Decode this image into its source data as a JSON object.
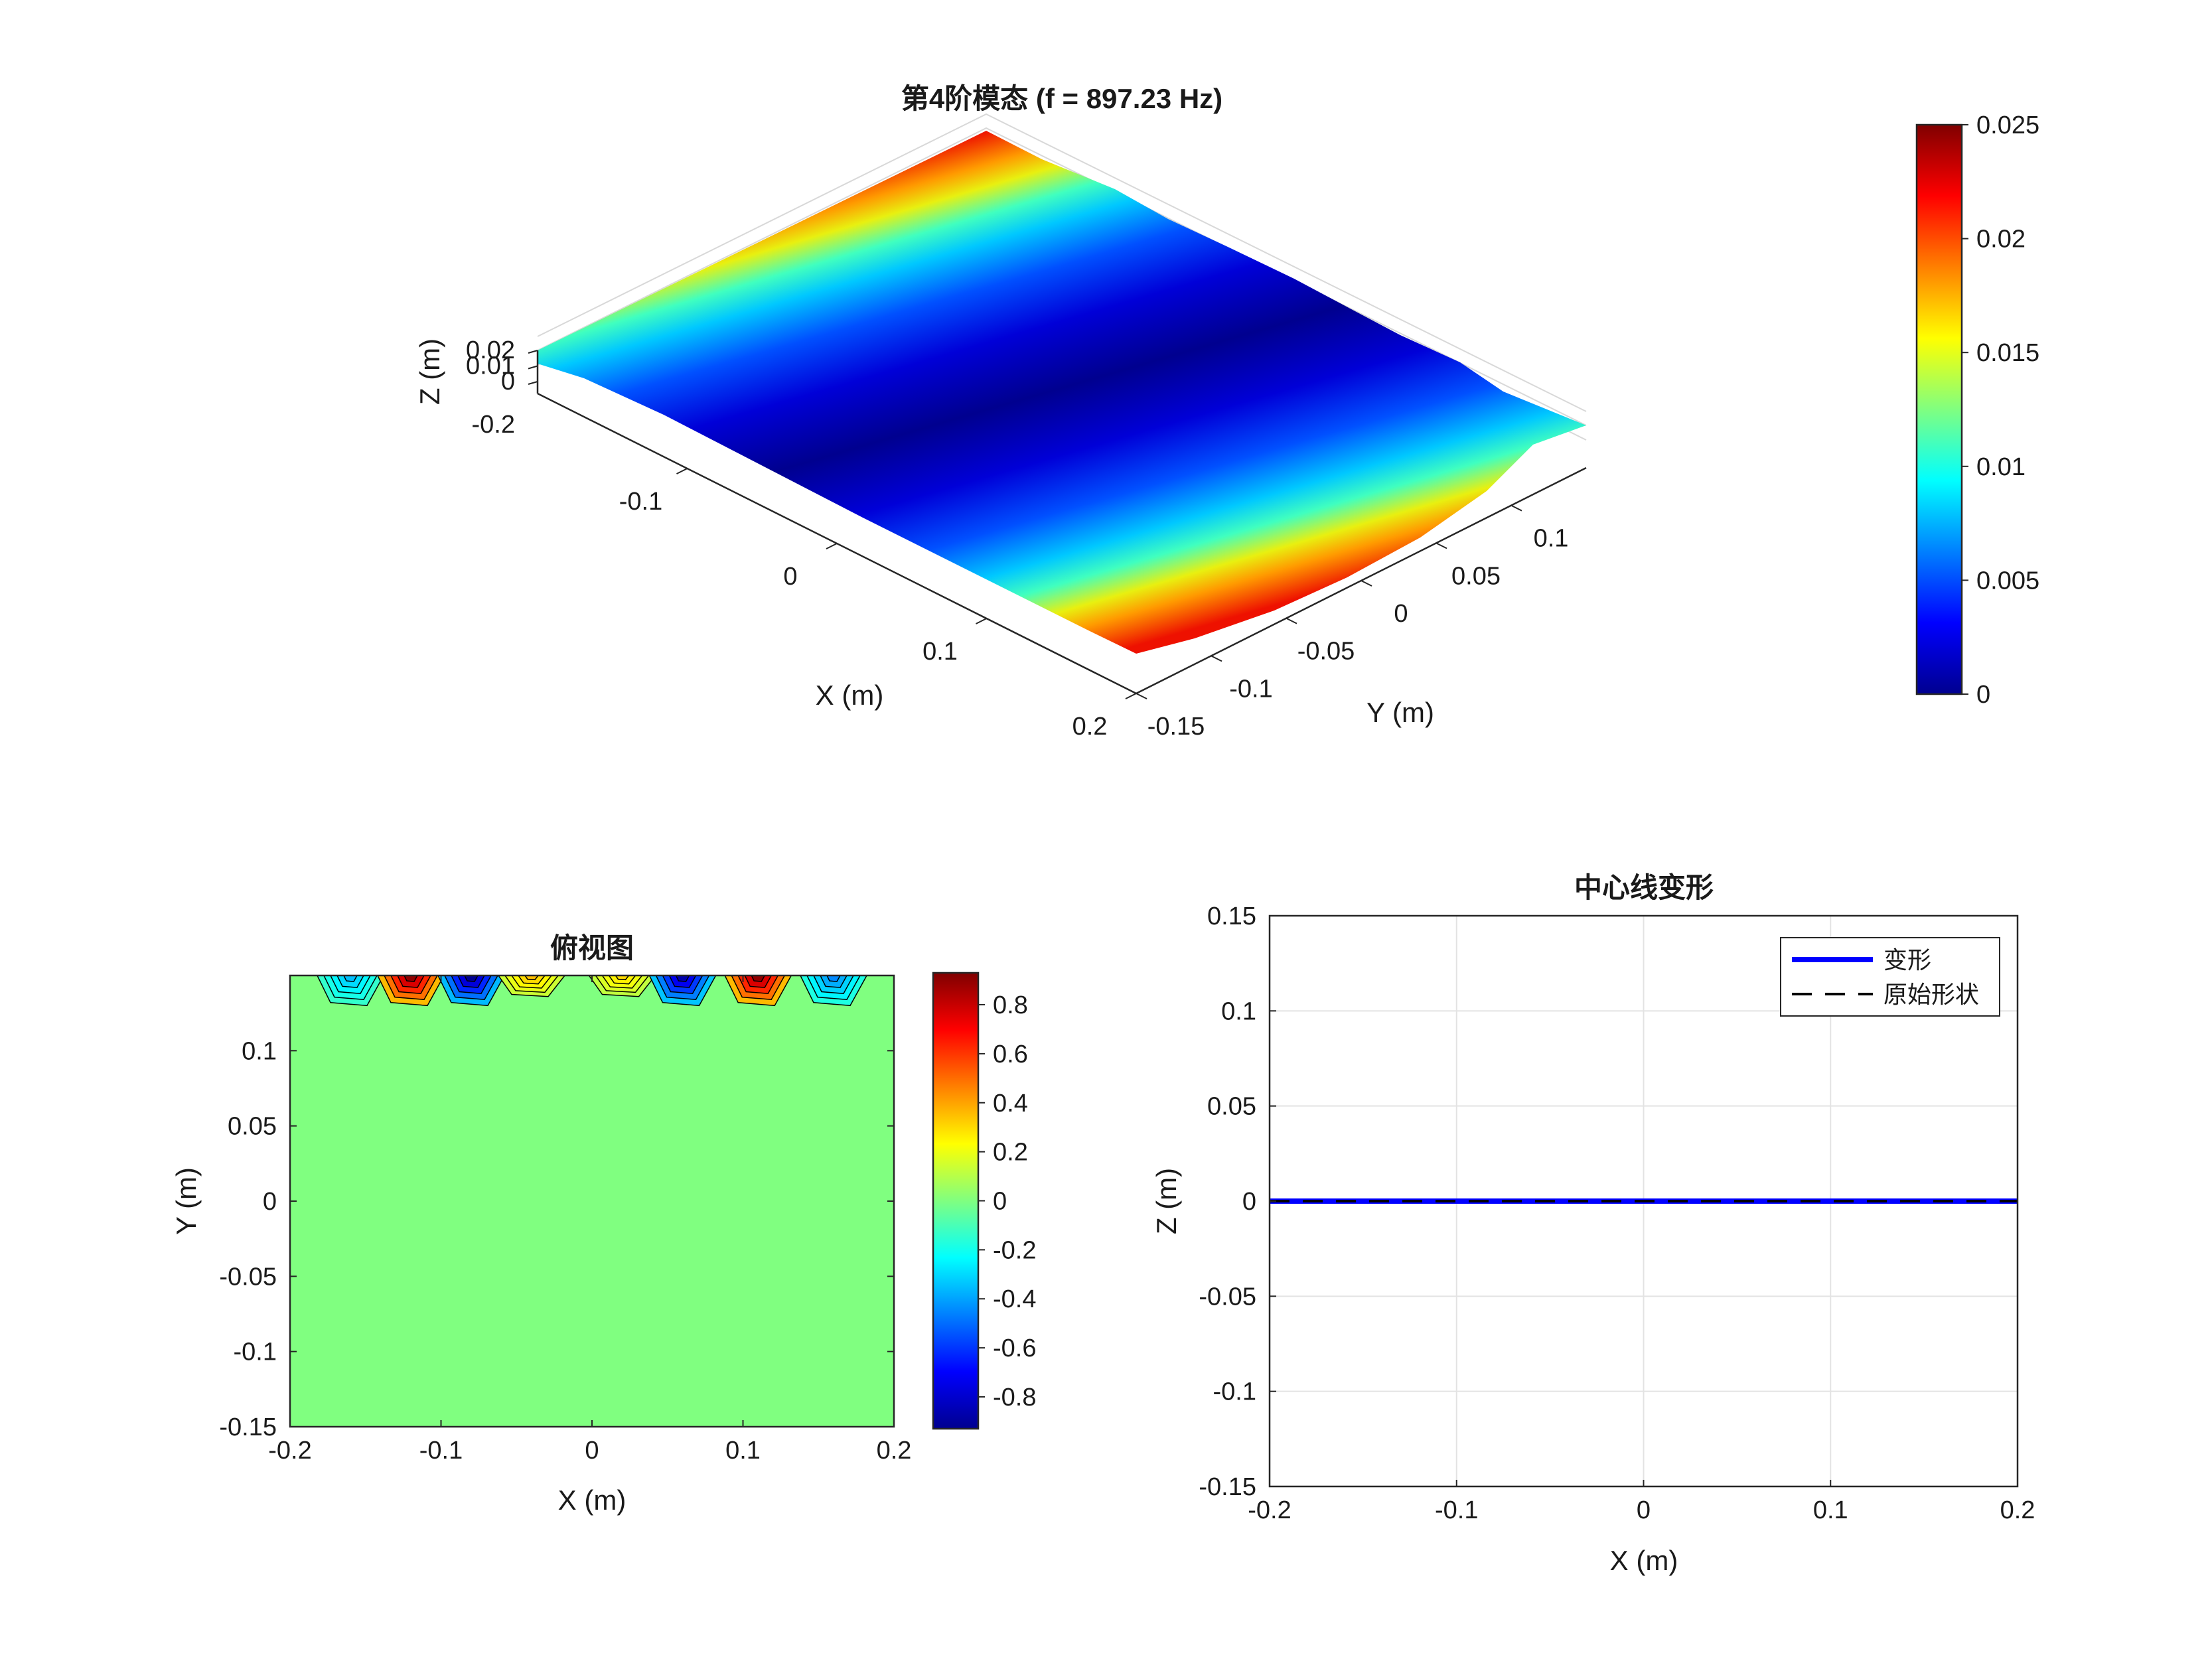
{
  "figure": {
    "background": "#ffffff",
    "colormap": "jet"
  },
  "chart_data": [
    {
      "type": "surface",
      "title": "第4阶模态 (f = 897.23 Hz)",
      "xlabel": "X (m)",
      "ylabel": "Y (m)",
      "zlabel": "Z (m)",
      "x_ticks": [
        -0.1,
        0,
        0.1,
        0.2
      ],
      "x_tick_labels": [
        "-0.1",
        "0",
        "0.1",
        "0.2"
      ],
      "y_ticks": [
        -0.15,
        -0.1,
        -0.05,
        0,
        0.05,
        0.1
      ],
      "y_tick_labels": [
        "-0.15",
        "-0.1",
        "-0.05",
        "0",
        "0.05",
        "0.1"
      ],
      "z_ticks": [
        0,
        0.01,
        0.02
      ],
      "z_tick_labels": [
        "0",
        "0.01",
        "0.02"
      ],
      "corner_tick_label": "-0.2",
      "xlim": [
        -0.2,
        0.2
      ],
      "ylim": [
        -0.15,
        0.15
      ],
      "zlim": [
        0,
        0.025
      ],
      "z_profile_along_y": {
        "y": [
          -0.15,
          -0.1,
          -0.05,
          0,
          0.05,
          0.1,
          0.15
        ],
        "z": [
          0.025,
          0.0085,
          0.002,
          0.0,
          0.002,
          0.0085,
          0.025
        ]
      },
      "colorbar": {
        "min": 0,
        "max": 0.025,
        "ticks": [
          0,
          0.005,
          0.01,
          0.015,
          0.02,
          0.025
        ],
        "tick_labels": [
          "0",
          "0.005",
          "0.01",
          "0.015",
          "0.02",
          "0.025"
        ]
      },
      "grid": true
    },
    {
      "type": "contour",
      "title": "俯视图",
      "xlabel": "X (m)",
      "ylabel": "Y (m)",
      "xlim": [
        -0.2,
        0.2
      ],
      "ylim": [
        -0.15,
        0.15
      ],
      "x_ticks": [
        -0.2,
        -0.1,
        0,
        0.1,
        0.2
      ],
      "x_tick_labels": [
        "-0.2",
        "-0.1",
        "0",
        "0.1",
        "0.2"
      ],
      "y_ticks": [
        -0.15,
        -0.1,
        -0.05,
        0,
        0.05,
        0.1
      ],
      "y_tick_labels": [
        "-0.15",
        "-0.1",
        "-0.05",
        "0",
        "0.05",
        "0.1"
      ],
      "background_value": 0,
      "edge_lobes": [
        {
          "x": -0.16,
          "value": -0.35,
          "depth": 0.02
        },
        {
          "x": -0.12,
          "value": 0.9,
          "depth": 0.02
        },
        {
          "x": -0.08,
          "value": -0.9,
          "depth": 0.02
        },
        {
          "x": -0.04,
          "value": 0.35,
          "depth": 0.014
        },
        {
          "x": 0.02,
          "value": 0.3,
          "depth": 0.014
        },
        {
          "x": 0.06,
          "value": -0.85,
          "depth": 0.02
        },
        {
          "x": 0.11,
          "value": 0.9,
          "depth": 0.02
        },
        {
          "x": 0.16,
          "value": -0.45,
          "depth": 0.02
        }
      ],
      "colorbar": {
        "min": -0.93,
        "max": 0.93,
        "ticks": [
          -0.8,
          -0.6,
          -0.4,
          -0.2,
          0,
          0.2,
          0.4,
          0.6,
          0.8
        ],
        "tick_labels": [
          "-0.8",
          "-0.6",
          "-0.4",
          "-0.2",
          "0",
          "0.2",
          "0.4",
          "0.6",
          "0.8"
        ]
      }
    },
    {
      "type": "line",
      "title": "中心线变形",
      "xlabel": "X (m)",
      "ylabel": "Z (m)",
      "xlim": [
        -0.2,
        0.2
      ],
      "ylim": [
        -0.15,
        0.15
      ],
      "x_ticks": [
        -0.2,
        -0.1,
        0,
        0.1,
        0.2
      ],
      "x_tick_labels": [
        "-0.2",
        "-0.1",
        "0",
        "0.1",
        "0.2"
      ],
      "y_ticks": [
        -0.15,
        -0.1,
        -0.05,
        0,
        0.05,
        0.1,
        0.15
      ],
      "y_tick_labels": [
        "-0.15",
        "-0.1",
        "-0.05",
        "0",
        "0.05",
        "0.1",
        "0.15"
      ],
      "grid": true,
      "legend_position": "top-right",
      "series": [
        {
          "name": "变形",
          "color": "#0000ff",
          "style": "solid",
          "x": [
            -0.2,
            0.2
          ],
          "y": [
            0,
            0
          ]
        },
        {
          "name": "原始形状",
          "color": "#000000",
          "style": "dashed",
          "x": [
            -0.2,
            0.2
          ],
          "y": [
            0,
            0
          ]
        }
      ]
    }
  ]
}
